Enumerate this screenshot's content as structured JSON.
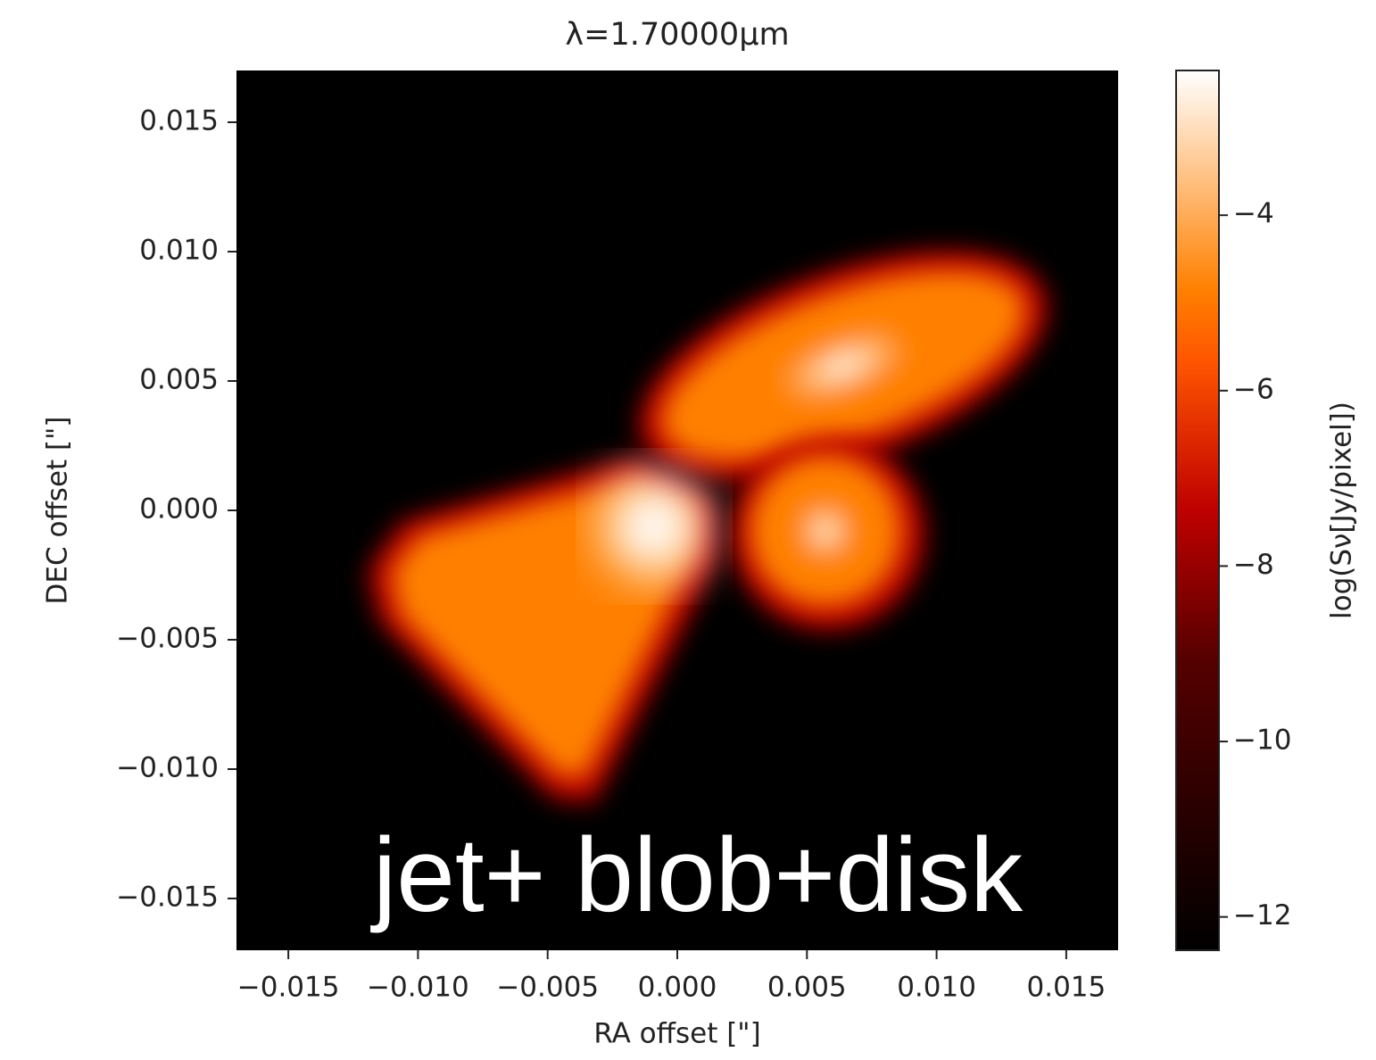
{
  "chart_data": {
    "type": "image",
    "title": "λ=1.70000μm",
    "xlabel": "RA offset [\"]",
    "ylabel": "DEC offset [\"]",
    "colorbar_label": "log(Sν[Jy/pixel])",
    "annotation": "jet+ blob+disk",
    "xlim": [
      -0.017,
      0.017
    ],
    "ylim": [
      -0.017,
      0.017
    ],
    "xticks": [
      {
        "value": -0.015,
        "label": "−0.015"
      },
      {
        "value": -0.01,
        "label": "−0.010"
      },
      {
        "value": -0.005,
        "label": "−0.005"
      },
      {
        "value": 0,
        "label": "0.000"
      },
      {
        "value": 0.005,
        "label": "0.005"
      },
      {
        "value": 0.01,
        "label": "0.010"
      },
      {
        "value": 0.015,
        "label": "0.015"
      }
    ],
    "yticks": [
      {
        "value": -0.015,
        "label": "−0.015"
      },
      {
        "value": -0.01,
        "label": "−0.010"
      },
      {
        "value": -0.005,
        "label": "−0.005"
      },
      {
        "value": 0,
        "label": "0.000"
      },
      {
        "value": 0.005,
        "label": "0.005"
      },
      {
        "value": 0.01,
        "label": "0.010"
      },
      {
        "value": 0.015,
        "label": "0.015"
      }
    ],
    "clim": [
      -12.38,
      -2.35
    ],
    "cticks": [
      {
        "value": -12,
        "label": "−12"
      },
      {
        "value": -10,
        "label": "−10"
      },
      {
        "value": -8,
        "label": "−8"
      },
      {
        "value": -6,
        "label": "−6"
      },
      {
        "value": -4,
        "label": "−4"
      }
    ],
    "colormap": [
      "#000000",
      "#550000",
      "#bf0000",
      "#ff5500",
      "#ff8000",
      "#ffffff"
    ]
  }
}
